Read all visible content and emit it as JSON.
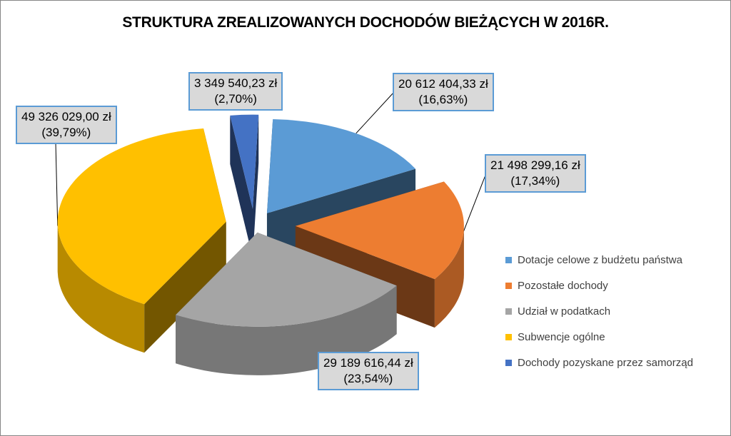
{
  "chart_data": {
    "type": "pie",
    "title": "STRUKTURA ZREALIZOWANYCH DOCHODÓW BIEŻĄCYCH  W 2016R.",
    "categories": [
      "Dotacje celowe z budżetu państwa",
      "Pozostałe dochody",
      "Udział w podatkach",
      "Subwencje ogólne",
      "Dochody pozyskane przez samorząd"
    ],
    "values": [
      20612404.33,
      21498299.16,
      29189616.44,
      49326029.0,
      3349540.23
    ],
    "percentages": [
      16.63,
      17.34,
      23.54,
      39.79,
      2.7
    ],
    "data_labels": [
      {
        "value": "20 612 404,33 zł",
        "percent": "(16,63%)"
      },
      {
        "value": "21 498 299,16 zł",
        "percent": "(17,34%)"
      },
      {
        "value": "29 189 616,44 zł",
        "percent": "(23,54%)"
      },
      {
        "value": "49 326 029,00 zł",
        "percent": "(39,79%)"
      },
      {
        "value": "3 349 540,23 zł",
        "percent": "(2,70%)"
      }
    ],
    "colors": [
      "#5b9bd5",
      "#ed7d31",
      "#a5a5a5",
      "#ffc000",
      "#4472c4"
    ],
    "exploded": true,
    "three_d": true,
    "legend_position": "right"
  }
}
